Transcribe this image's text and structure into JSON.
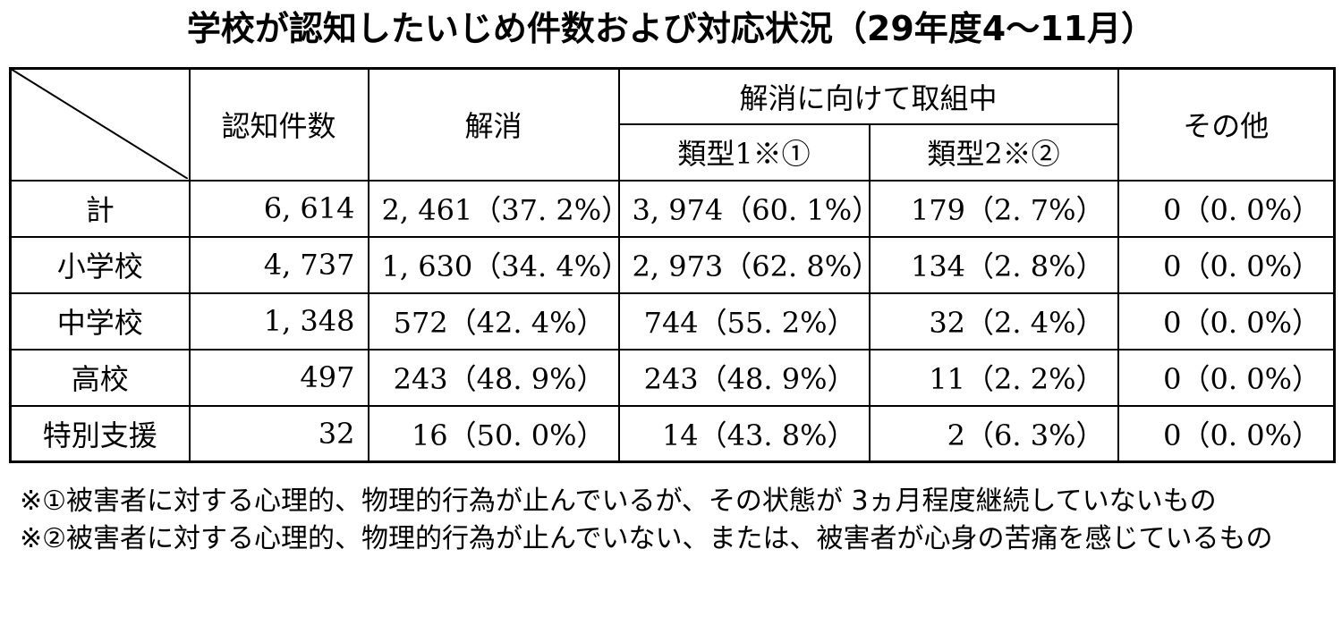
{
  "header": {
    "title": "学校が認知したいじめ件数および対応状況（29年度4～11月）"
  },
  "table": {
    "columns": [
      "認知件数",
      "解消",
      "解消に向けて取組中",
      "その他"
    ],
    "subcolumns": [
      "類型1※①",
      "類型2※②"
    ],
    "rows": [
      [
        "計",
        "6, 614",
        "2, 461（37. 2%）",
        "3, 974（60. 1%）",
        "179（2. 7%）",
        "0（0. 0%）"
      ],
      [
        "小学校",
        "4, 737",
        "1, 630（34. 4%）",
        "2, 973（62. 8%）",
        "134（2. 8%）",
        "0（0. 0%）"
      ],
      [
        "中学校",
        "1, 348",
        "572（42. 4%）",
        "744（55. 2%）",
        "32（2. 4%）",
        "0（0. 0%）"
      ],
      [
        "高校",
        "497",
        "243（48. 9%）",
        "243（48. 9%）",
        "11（2. 2%）",
        "0（0. 0%）"
      ],
      [
        "特別支援",
        "32",
        "16（50. 0%）",
        "14（43. 8%）",
        "2（6. 3%）",
        "0（0. 0%）"
      ]
    ]
  },
  "notes": [
    "※①被害者に対する心理的、物理的行為が止んでいるが、その状態が 3ヵ月程度継続していないもの",
    "※②被害者に対する心理的、物理的行為が止んでいない、または、被害者が心身の苦痛を感じているもの"
  ]
}
